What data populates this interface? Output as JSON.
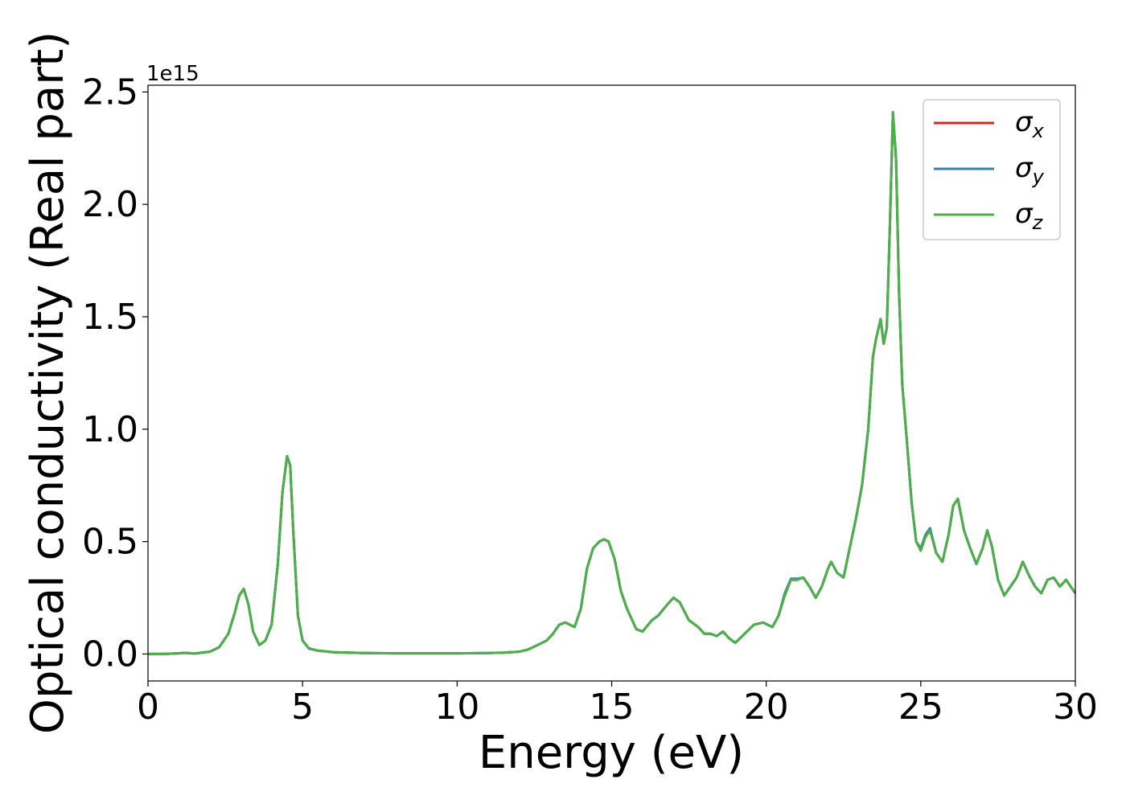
{
  "chart_data": {
    "type": "line",
    "title": "",
    "xlabel": "Energy (eV)",
    "ylabel": "Optical conductivity (Real part)",
    "xlim": [
      0,
      30
    ],
    "ylim": [
      -0.12,
      2.53
    ],
    "offset_label": "1e15",
    "xticks": [
      0,
      5,
      10,
      15,
      20,
      25,
      30
    ],
    "xtick_labels": [
      "0",
      "5",
      "10",
      "15",
      "20",
      "25",
      "30"
    ],
    "yticks": [
      0.0,
      0.5,
      1.0,
      1.5,
      2.0,
      2.5
    ],
    "ytick_labels": [
      "0.0",
      "0.5",
      "1.0",
      "1.5",
      "2.0",
      "2.5"
    ],
    "grid": false,
    "legend_position": "upper right",
    "x": [
      0,
      0.5,
      1.0,
      1.2,
      1.5,
      2.0,
      2.3,
      2.6,
      2.8,
      2.95,
      3.1,
      3.25,
      3.4,
      3.6,
      3.8,
      4.0,
      4.2,
      4.35,
      4.5,
      4.6,
      4.7,
      4.85,
      5.0,
      5.2,
      5.5,
      6.0,
      7.0,
      8.0,
      9.0,
      10.0,
      11.0,
      11.5,
      12.0,
      12.3,
      12.6,
      12.9,
      13.1,
      13.3,
      13.5,
      13.8,
      14.0,
      14.2,
      14.4,
      14.6,
      14.75,
      14.9,
      15.1,
      15.3,
      15.5,
      15.8,
      16.0,
      16.3,
      16.5,
      16.8,
      17.0,
      17.2,
      17.5,
      17.8,
      18.0,
      18.2,
      18.4,
      18.6,
      18.8,
      19.0,
      19.3,
      19.6,
      19.9,
      20.2,
      20.4,
      20.6,
      20.8,
      21.0,
      21.2,
      21.4,
      21.6,
      21.8,
      22.0,
      22.1,
      22.3,
      22.5,
      22.7,
      22.9,
      23.1,
      23.3,
      23.45,
      23.55,
      23.7,
      23.8,
      23.9,
      24.0,
      24.1,
      24.2,
      24.3,
      24.4,
      24.55,
      24.7,
      24.85,
      25.0,
      25.15,
      25.3,
      25.5,
      25.7,
      25.9,
      26.05,
      26.2,
      26.4,
      26.6,
      26.8,
      27.0,
      27.15,
      27.3,
      27.5,
      27.7,
      27.9,
      28.1,
      28.3,
      28.5,
      28.7,
      28.9,
      29.1,
      29.3,
      29.5,
      29.7,
      30.0
    ],
    "series": [
      {
        "name": "σx",
        "color": "#d62728",
        "values": [
          0.0,
          0.0,
          0.003,
          0.005,
          0.002,
          0.01,
          0.03,
          0.09,
          0.18,
          0.26,
          0.29,
          0.22,
          0.1,
          0.04,
          0.06,
          0.13,
          0.4,
          0.72,
          0.88,
          0.84,
          0.55,
          0.17,
          0.06,
          0.025,
          0.015,
          0.008,
          0.004,
          0.003,
          0.003,
          0.003,
          0.004,
          0.006,
          0.01,
          0.02,
          0.04,
          0.06,
          0.09,
          0.13,
          0.14,
          0.12,
          0.2,
          0.38,
          0.47,
          0.5,
          0.51,
          0.5,
          0.42,
          0.28,
          0.2,
          0.11,
          0.1,
          0.15,
          0.17,
          0.22,
          0.25,
          0.23,
          0.15,
          0.12,
          0.09,
          0.09,
          0.08,
          0.1,
          0.07,
          0.05,
          0.09,
          0.13,
          0.14,
          0.12,
          0.17,
          0.26,
          0.33,
          0.33,
          0.34,
          0.3,
          0.25,
          0.3,
          0.38,
          0.41,
          0.36,
          0.34,
          0.47,
          0.6,
          0.75,
          1.0,
          1.32,
          1.4,
          1.49,
          1.38,
          1.45,
          1.9,
          2.41,
          2.2,
          1.6,
          1.2,
          0.95,
          0.68,
          0.5,
          0.46,
          0.52,
          0.55,
          0.45,
          0.41,
          0.53,
          0.66,
          0.69,
          0.55,
          0.47,
          0.4,
          0.47,
          0.55,
          0.48,
          0.33,
          0.26,
          0.3,
          0.34,
          0.41,
          0.35,
          0.3,
          0.27,
          0.33,
          0.34,
          0.3,
          0.33,
          0.27
        ]
      },
      {
        "name": "σy",
        "color": "#377eb8",
        "values": [
          0.0,
          0.0,
          0.003,
          0.005,
          0.002,
          0.01,
          0.03,
          0.09,
          0.18,
          0.26,
          0.29,
          0.22,
          0.1,
          0.04,
          0.06,
          0.13,
          0.4,
          0.72,
          0.88,
          0.84,
          0.55,
          0.17,
          0.06,
          0.025,
          0.015,
          0.008,
          0.004,
          0.003,
          0.003,
          0.003,
          0.004,
          0.006,
          0.01,
          0.02,
          0.04,
          0.06,
          0.09,
          0.13,
          0.14,
          0.12,
          0.2,
          0.38,
          0.47,
          0.5,
          0.51,
          0.5,
          0.42,
          0.28,
          0.2,
          0.11,
          0.1,
          0.15,
          0.17,
          0.22,
          0.25,
          0.23,
          0.15,
          0.12,
          0.09,
          0.09,
          0.08,
          0.1,
          0.07,
          0.05,
          0.09,
          0.13,
          0.14,
          0.12,
          0.17,
          0.27,
          0.335,
          0.335,
          0.34,
          0.3,
          0.25,
          0.3,
          0.38,
          0.41,
          0.36,
          0.34,
          0.47,
          0.6,
          0.75,
          1.0,
          1.32,
          1.4,
          1.49,
          1.38,
          1.45,
          1.9,
          2.41,
          2.2,
          1.6,
          1.2,
          0.95,
          0.68,
          0.5,
          0.47,
          0.53,
          0.56,
          0.45,
          0.41,
          0.53,
          0.66,
          0.69,
          0.55,
          0.47,
          0.4,
          0.47,
          0.55,
          0.48,
          0.33,
          0.26,
          0.3,
          0.34,
          0.41,
          0.35,
          0.3,
          0.27,
          0.33,
          0.34,
          0.3,
          0.33,
          0.27
        ]
      },
      {
        "name": "σz",
        "color": "#4daf4a",
        "values": [
          0.0,
          0.0,
          0.003,
          0.005,
          0.002,
          0.01,
          0.03,
          0.09,
          0.18,
          0.26,
          0.29,
          0.22,
          0.1,
          0.04,
          0.06,
          0.13,
          0.4,
          0.72,
          0.88,
          0.84,
          0.55,
          0.17,
          0.06,
          0.025,
          0.015,
          0.008,
          0.004,
          0.003,
          0.003,
          0.003,
          0.004,
          0.006,
          0.01,
          0.02,
          0.04,
          0.06,
          0.09,
          0.13,
          0.14,
          0.12,
          0.2,
          0.38,
          0.47,
          0.5,
          0.51,
          0.5,
          0.42,
          0.28,
          0.2,
          0.11,
          0.1,
          0.15,
          0.17,
          0.22,
          0.25,
          0.23,
          0.15,
          0.12,
          0.09,
          0.09,
          0.08,
          0.1,
          0.07,
          0.05,
          0.09,
          0.13,
          0.14,
          0.12,
          0.17,
          0.26,
          0.33,
          0.33,
          0.34,
          0.3,
          0.25,
          0.3,
          0.38,
          0.41,
          0.36,
          0.34,
          0.47,
          0.6,
          0.75,
          1.0,
          1.32,
          1.4,
          1.49,
          1.38,
          1.45,
          1.9,
          2.41,
          2.2,
          1.6,
          1.2,
          0.95,
          0.68,
          0.5,
          0.46,
          0.52,
          0.55,
          0.45,
          0.41,
          0.53,
          0.66,
          0.69,
          0.55,
          0.47,
          0.4,
          0.47,
          0.55,
          0.48,
          0.33,
          0.26,
          0.3,
          0.34,
          0.41,
          0.35,
          0.3,
          0.27,
          0.33,
          0.34,
          0.3,
          0.33,
          0.27
        ]
      }
    ]
  }
}
